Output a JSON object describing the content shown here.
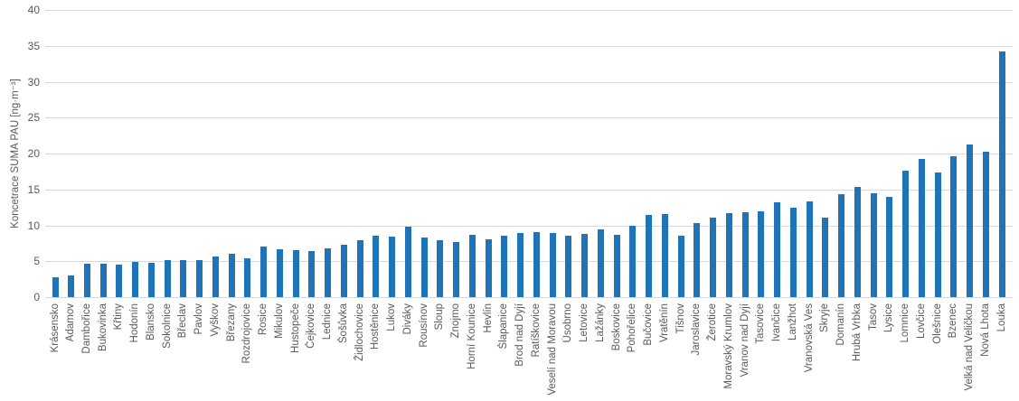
{
  "colors": {
    "bar": "#1E73B9",
    "gridline": "#d9d9d9",
    "axis_text": "#595959",
    "background": "#ffffff"
  },
  "chart_data": {
    "type": "bar",
    "title": "",
    "xlabel": "",
    "ylabel": "Koncetrace SUMA PAU [ng·m⁻³]",
    "ylim": [
      0,
      40
    ],
    "yticks": [
      0,
      5,
      10,
      15,
      20,
      25,
      30,
      35,
      40
    ],
    "grid": true,
    "legend": false,
    "categories": [
      "Krásensko",
      "Adamov",
      "Dambořice",
      "Bukovinka",
      "Křtiny",
      "Hodonín",
      "Blansko",
      "Sokolnice",
      "Břeclav",
      "Pavlov",
      "Vyškov",
      "Březany",
      "Rozdrojovice",
      "Rosice",
      "Mikulov",
      "Hustopeče",
      "Čejkovice",
      "Lednice",
      "Šošůvka",
      "Židlochovice",
      "Hostěnice",
      "Lukov",
      "Diváky",
      "Rousínov",
      "Sloup",
      "Znojmo",
      "Horní Kounice",
      "Hevlín",
      "Šlapanice",
      "Brod nad Dyjí",
      "Ratíškovice",
      "Veselí nad Moravou",
      "Úsobrno",
      "Letovice",
      "Lažánky",
      "Boskovice",
      "Pohořelice",
      "Bučovice",
      "Vratěnín",
      "Tišnov",
      "Jaroslavice",
      "Žerotice",
      "Moravský Krumlov",
      "Vranov nad Dyjí",
      "Tasovice",
      "Ivančice",
      "Lanžhot",
      "Vranovská Ves",
      "Skryje",
      "Domanín",
      "Hrubá Vrbka",
      "Tasov",
      "Lysice",
      "Lomnice",
      "Lovčice",
      "Olešnice",
      "Bzenec",
      "Velká nad Veličkou",
      "Nová Lhota",
      "Louka"
    ],
    "values": [
      2.8,
      3.0,
      4.6,
      4.7,
      4.5,
      4.9,
      4.8,
      5.2,
      5.2,
      5.2,
      5.7,
      6.1,
      5.4,
      7.0,
      6.7,
      6.6,
      6.4,
      6.8,
      7.3,
      7.9,
      8.6,
      8.4,
      9.8,
      8.3,
      7.9,
      7.7,
      8.7,
      8.0,
      8.6,
      8.9,
      9.0,
      8.9,
      8.5,
      8.8,
      9.4,
      8.7,
      9.9,
      11.5,
      11.6,
      8.6,
      10.3,
      11.1,
      11.7,
      11.8,
      11.9,
      13.2,
      12.4,
      13.3,
      11.1,
      14.4,
      15.3,
      14.5,
      14.0,
      17.6,
      19.2,
      17.4,
      19.6,
      21.2,
      20.2,
      34.2
    ]
  }
}
